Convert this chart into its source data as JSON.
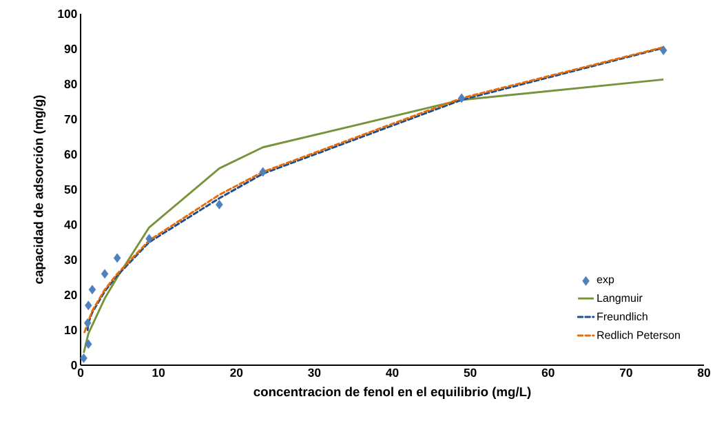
{
  "chart_data": {
    "type": "scatter",
    "xlabel": "concentracion de fenol en el equilibrio  (mg/L)",
    "ylabel": "capacidad de adsorción (mg/g)",
    "xlim": [
      0,
      80
    ],
    "xticks": [
      0,
      10,
      20,
      30,
      40,
      50,
      60,
      70,
      80
    ],
    "ylim": [
      0,
      100
    ],
    "yticks": [
      0,
      10,
      20,
      30,
      40,
      50,
      60,
      70,
      80,
      90,
      100
    ],
    "grid": false,
    "legend": "bottom right",
    "marker": "diamond",
    "series": [
      {
        "name": "exp",
        "color": "#4f81bd",
        "x": [
          0.4,
          1.0,
          0.9,
          1.0,
          1.5,
          3.1,
          4.7,
          8.8,
          17.8,
          23.4,
          48.9,
          74.8
        ],
        "values": [
          2,
          6,
          12,
          17,
          21.5,
          26,
          30.5,
          36,
          45.7,
          55,
          76,
          89.6
        ]
      },
      {
        "name": "Langmuir",
        "type": "line",
        "color": "#77933c",
        "marker": "none",
        "line_style": "solid",
        "x": [
          0.4,
          1.0,
          3.1,
          4.7,
          8.8,
          17.8,
          23.4,
          48.9,
          74.8
        ],
        "values": [
          3.5,
          9,
          19,
          25,
          39.2,
          56,
          62,
          75.5,
          81.3
        ]
      },
      {
        "name": "Freundlich",
        "type": "line",
        "color": "#1f4e8c",
        "marker": "none",
        "line_style": "dashed",
        "x": [
          0.9,
          1.0,
          1.5,
          3.1,
          4.7,
          8.8,
          17.8,
          23.4,
          48.9,
          74.8
        ],
        "values": [
          10,
          12,
          15,
          21,
          25.5,
          35,
          47.5,
          54.5,
          75.5,
          90.3
        ]
      },
      {
        "name": "Redlich Peterson",
        "type": "line",
        "color": "#e46c0a",
        "marker": "none",
        "line_style": "dashed",
        "x": [
          0.5,
          1.0,
          1.5,
          3.1,
          4.7,
          8.8,
          17.8,
          23.4,
          48.9,
          74.8
        ],
        "values": [
          9.4,
          12.5,
          15.5,
          21.5,
          26,
          35.5,
          48.5,
          55,
          76,
          90.5
        ]
      }
    ]
  }
}
